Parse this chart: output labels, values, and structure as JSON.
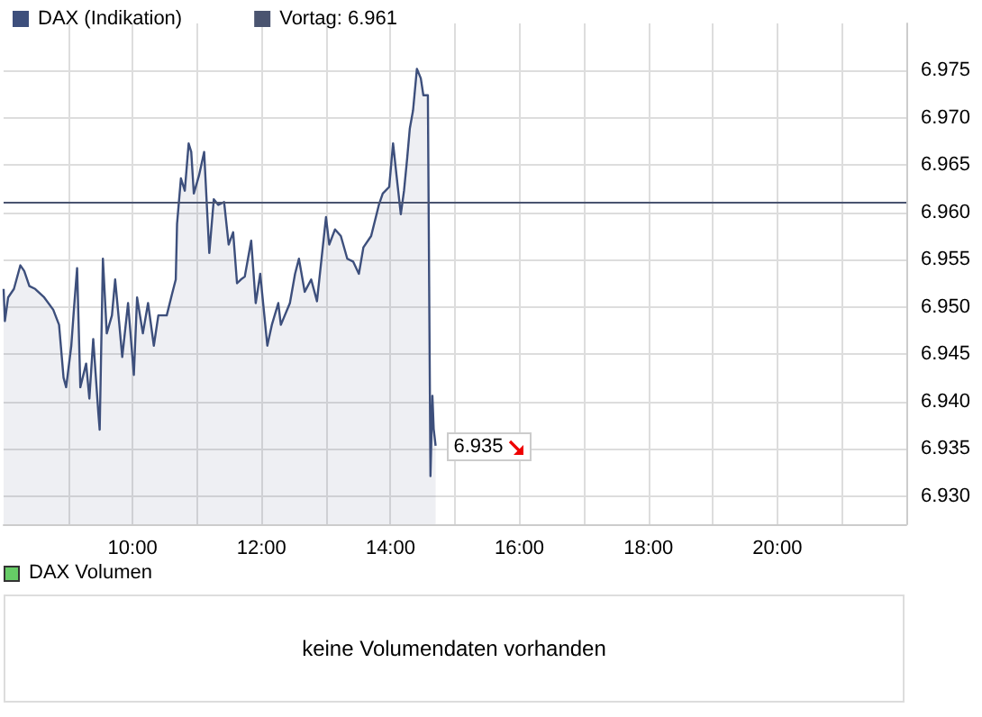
{
  "chart_data": [
    {
      "type": "area",
      "xlim": [
        8,
        22
      ],
      "xticks": [
        {
          "value": 9,
          "label": null
        },
        {
          "value": 10,
          "label": "10:00"
        },
        {
          "value": 11,
          "label": null
        },
        {
          "value": 12,
          "label": "12:00"
        },
        {
          "value": 13,
          "label": null
        },
        {
          "value": 14,
          "label": "14:00"
        },
        {
          "value": 15,
          "label": null
        },
        {
          "value": 16,
          "label": "16:00"
        },
        {
          "value": 17,
          "label": null
        },
        {
          "value": 18,
          "label": "18:00"
        },
        {
          "value": 19,
          "label": null
        },
        {
          "value": 20,
          "label": "20:00"
        },
        {
          "value": 21,
          "label": null
        }
      ],
      "ylim": [
        6927,
        6980
      ],
      "yticks": [
        {
          "value": 6930,
          "label": "6.930"
        },
        {
          "value": 6935,
          "label": "6.935"
        },
        {
          "value": 6940,
          "label": "6.940"
        },
        {
          "value": 6945,
          "label": "6.945"
        },
        {
          "value": 6950,
          "label": "6.950"
        },
        {
          "value": 6955,
          "label": "6.955"
        },
        {
          "value": 6960,
          "label": "6.960"
        },
        {
          "value": 6965,
          "label": "6.965"
        },
        {
          "value": 6970,
          "label": "6.970"
        },
        {
          "value": 6975,
          "label": "6.975"
        }
      ],
      "grid": true,
      "legend": "top left",
      "x": [
        8.0,
        8.02,
        8.07,
        8.16,
        8.26,
        8.32,
        8.4,
        8.49,
        8.63,
        8.77,
        8.86,
        8.93,
        8.97,
        9.05,
        9.09,
        9.14,
        9.19,
        9.28,
        9.33,
        9.39,
        9.47,
        9.49,
        9.54,
        9.6,
        9.68,
        9.73,
        9.79,
        9.84,
        9.93,
        10.02,
        10.07,
        10.16,
        10.24,
        10.33,
        10.4,
        10.53,
        10.61,
        10.67,
        10.69,
        10.75,
        10.81,
        10.87,
        10.91,
        10.95,
        11.03,
        11.11,
        11.19,
        11.26,
        11.33,
        11.42,
        11.49,
        11.56,
        11.62,
        11.68,
        11.74,
        11.84,
        11.91,
        11.98,
        12.09,
        12.16,
        12.26,
        12.3,
        12.44,
        12.52,
        12.58,
        12.67,
        12.77,
        12.86,
        13.0,
        13.05,
        13.14,
        13.23,
        13.33,
        13.42,
        13.51,
        13.58,
        13.7,
        13.82,
        13.88,
        13.98,
        14.04,
        14.11,
        14.16,
        14.21,
        14.26,
        14.3,
        14.35,
        14.41,
        14.47,
        14.51,
        14.58,
        14.6,
        14.62,
        14.65,
        14.67,
        14.7
      ],
      "series": [
        {
          "name": "DAX (Indikation)",
          "color": "#3d4f7c",
          "values": [
            6951.9,
            6948.5,
            6951,
            6951.9,
            6954.4,
            6953.8,
            6952.2,
            6951.9,
            6951,
            6949.7,
            6948.1,
            6942.5,
            6941.5,
            6945.9,
            6949.7,
            6954.1,
            6941.5,
            6944,
            6940.3,
            6946.6,
            6938.7,
            6937,
            6955.1,
            6947.2,
            6949.1,
            6952.9,
            6948.5,
            6944.7,
            6950.4,
            6942.8,
            6951,
            6947.2,
            6950.4,
            6945.9,
            6949.1,
            6949.1,
            6951.3,
            6952.9,
            6958.8,
            6963.6,
            6962.3,
            6967.3,
            6966.4,
            6962,
            6963.9,
            6966.4,
            6955.7,
            6961.4,
            6960.8,
            6961.1,
            6956.6,
            6957.9,
            6952.5,
            6952.9,
            6953.2,
            6957,
            6950.4,
            6953.5,
            6945.9,
            6948.1,
            6950.4,
            6948.1,
            6950.4,
            6953.5,
            6955.1,
            6951.6,
            6952.9,
            6950.6,
            6959.5,
            6956.6,
            6958.2,
            6957.5,
            6955.1,
            6954.8,
            6953.5,
            6956.3,
            6957.5,
            6960.8,
            6962,
            6962.7,
            6967.3,
            6962.9,
            6959.8,
            6962.3,
            6965.8,
            6968.9,
            6970.8,
            6975.2,
            6974.2,
            6972.4,
            6972.4,
            6952.2,
            6932.1,
            6940.6,
            6937.1,
            6935.3
          ]
        }
      ],
      "ref_lines": [
        {
          "axis": "y",
          "value": 6961,
          "label": "Vortag: 6.961",
          "color": "#4a5470"
        }
      ],
      "annotations": [
        {
          "text": "6.935",
          "x": 14.7,
          "y": 6935
        }
      ]
    },
    {
      "type": "other",
      "title": "DAX Volumen",
      "color": "#66cc66",
      "annotations": [
        "keine Volumendaten vorhanden"
      ]
    }
  ]
}
